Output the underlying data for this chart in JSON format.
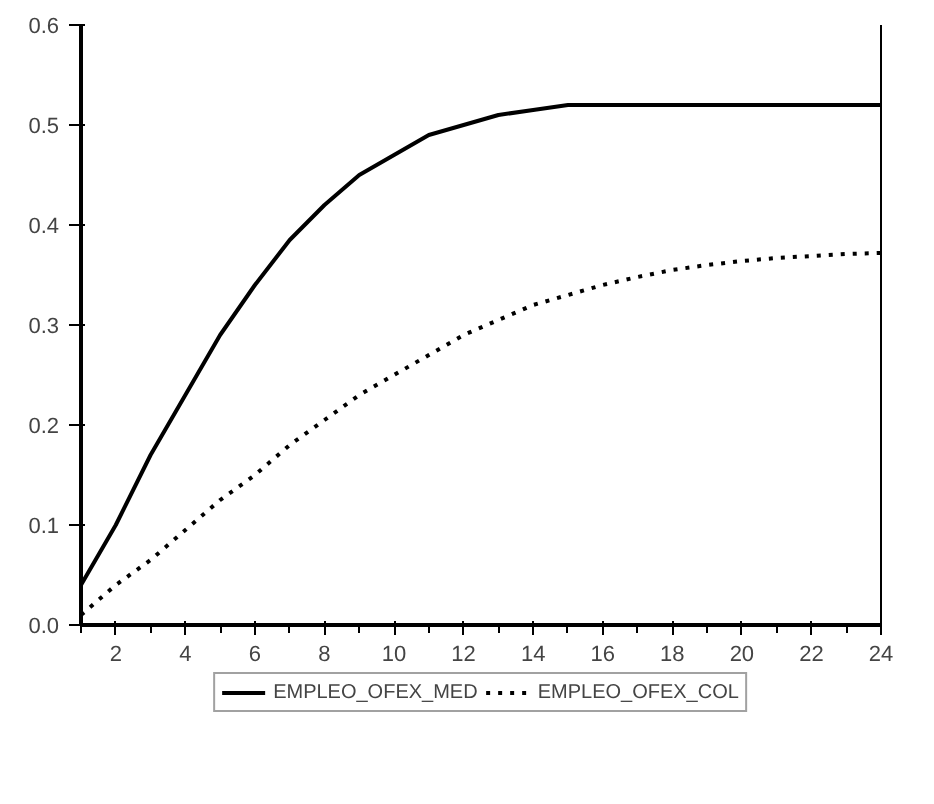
{
  "chart_data": {
    "type": "line",
    "x": [
      1,
      2,
      3,
      4,
      5,
      6,
      7,
      8,
      9,
      10,
      11,
      12,
      13,
      14,
      15,
      16,
      17,
      18,
      19,
      20,
      21,
      22,
      23,
      24
    ],
    "series": [
      {
        "name": "EMPLEO_OFEX_MED",
        "color": "#000000",
        "line_style": "solid",
        "values": [
          0.04,
          0.1,
          0.17,
          0.23,
          0.29,
          0.34,
          0.385,
          0.42,
          0.45,
          0.47,
          0.49,
          0.5,
          0.51,
          0.515,
          0.52,
          0.52,
          0.52,
          0.52,
          0.52,
          0.52,
          0.52,
          0.52,
          0.52,
          0.52
        ]
      },
      {
        "name": "EMPLEO_OFEX_COL",
        "color": "#000000",
        "line_style": "dotted",
        "values": [
          0.01,
          0.04,
          0.065,
          0.095,
          0.125,
          0.15,
          0.18,
          0.205,
          0.23,
          0.25,
          0.27,
          0.29,
          0.305,
          0.32,
          0.33,
          0.34,
          0.348,
          0.355,
          0.36,
          0.364,
          0.367,
          0.369,
          0.371,
          0.372
        ]
      }
    ],
    "xlim": [
      1,
      24
    ],
    "xticks": [
      2,
      4,
      6,
      8,
      10,
      12,
      14,
      16,
      18,
      20,
      22,
      24
    ],
    "ylim": [
      0,
      0.6
    ],
    "yticks": [
      {
        "value": 0,
        "label": "0.0"
      },
      0.1,
      0.2,
      0.3,
      0.4,
      0.5,
      0.6
    ],
    "grid": false,
    "legend": "bottom",
    "marker": "none"
  }
}
